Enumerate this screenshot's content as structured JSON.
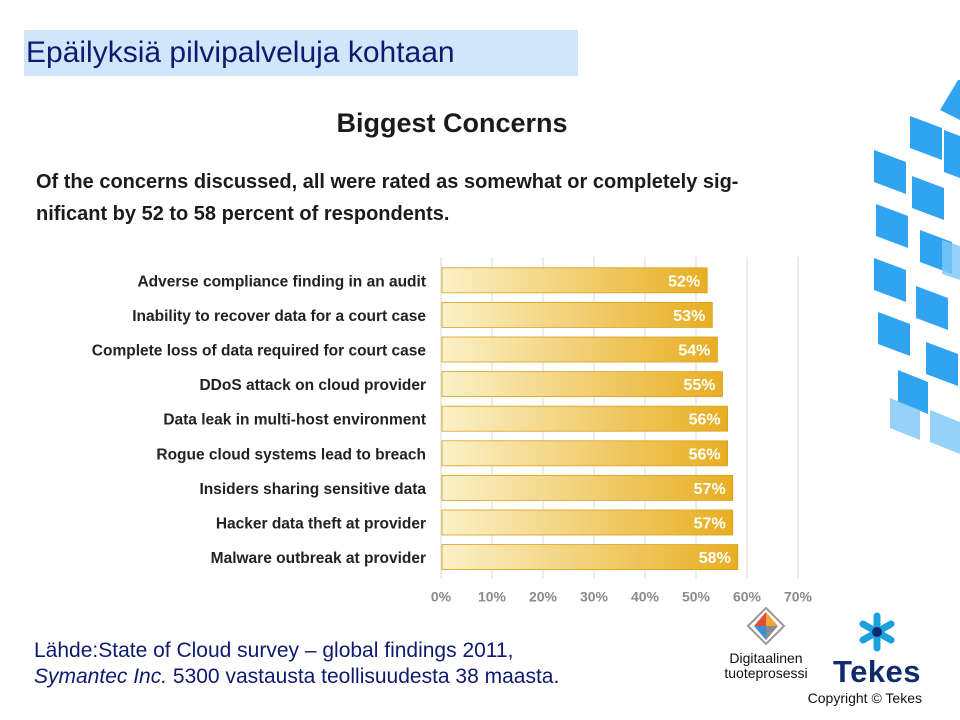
{
  "slide": {
    "title": "Epäilyksiä pilvipalveluja kohtaan"
  },
  "chart_data": {
    "type": "bar",
    "orientation": "horizontal",
    "title": "Biggest Concerns",
    "subtitle": "Of the concerns discussed, all were rated as somewhat or completely significant by 52 to 58 percent of respondents.",
    "subtitle_line1": "Of the concerns discussed, all were rated as somewhat or completely sig-",
    "subtitle_line2": "nificant by 52 to 58 percent of respondents.",
    "categories": [
      "Adverse compliance finding in an audit",
      "Inability to recover data for a court case",
      "Complete loss of data required for court case",
      "DDoS attack on cloud provider",
      "Data leak in multi-host environment",
      "Rogue cloud systems lead to breach",
      "Insiders sharing sensitive data",
      "Hacker data theft at provider",
      "Malware outbreak at provider"
    ],
    "values": [
      52,
      53,
      54,
      55,
      56,
      56,
      57,
      57,
      58
    ],
    "value_labels": [
      "52%",
      "53%",
      "54%",
      "55%",
      "56%",
      "56%",
      "57%",
      "57%",
      "58%"
    ],
    "xlim": [
      0,
      70
    ],
    "x_ticks": [
      "0%",
      "10%",
      "20%",
      "30%",
      "40%",
      "50%",
      "60%",
      "70%"
    ],
    "grid": true,
    "bar_color_light": "#fbf1c8",
    "bar_color_dark": "#e8ae22"
  },
  "source": {
    "line1": "Lähde:State of Cloud survey – global findings 2011,",
    "line2_italic": "Symantec Inc.",
    "line2_rest": " 5300 vastausta teollisuudesta 38 maasta."
  },
  "logos": {
    "digi_line1": "Digitaalinen",
    "digi_line2": "tuoteprosessi",
    "tekes": "Tekes"
  },
  "copyright": "Copyright © Tekes",
  "colors": {
    "title_bg": "#cfe6fb",
    "title_text": "#0d1a6e",
    "deco_blue": "#1a9bf0"
  }
}
